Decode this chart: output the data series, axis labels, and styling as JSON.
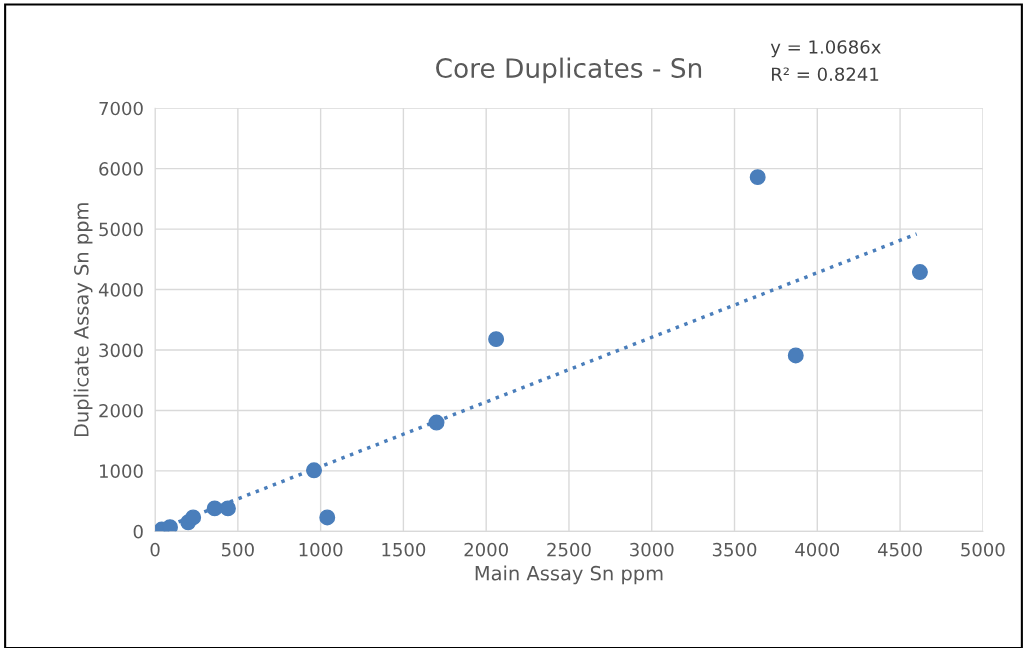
{
  "chart_data": {
    "type": "scatter",
    "title": "Core Duplicates - Sn",
    "xlabel": "Main Assay Sn ppm",
    "ylabel": "Duplicate Assay Sn ppm",
    "annotations": [
      "y = 1.0686x",
      "R² = 0.8241"
    ],
    "xlim": [
      0,
      5000
    ],
    "xticks": [
      0,
      500,
      1000,
      1500,
      2000,
      2500,
      3000,
      3500,
      4000,
      4500,
      5000
    ],
    "ylim": [
      0,
      7000
    ],
    "yticks": [
      0,
      1000,
      2000,
      3000,
      4000,
      5000,
      6000,
      7000
    ],
    "grid": true,
    "legend": false,
    "series": [
      {
        "color": "#4a7ebb",
        "marker": "circle",
        "x": [
          40,
          90,
          200,
          230,
          360,
          440,
          960,
          1040,
          1700,
          2060,
          3640,
          3870,
          4620
        ],
        "values": [
          30,
          70,
          150,
          230,
          380,
          380,
          1010,
          230,
          1800,
          3180,
          5860,
          2910,
          4290
        ]
      },
      {
        "type": "line",
        "color": "#4a7ebb",
        "marker": "none",
        "line_style": "dotted",
        "x": [
          90,
          4600
        ],
        "values": [
          100,
          4920
        ]
      }
    ]
  }
}
